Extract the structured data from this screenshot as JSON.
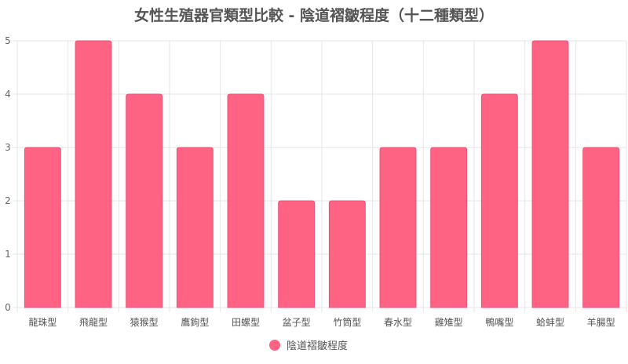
{
  "chart_data": {
    "type": "bar",
    "title": "女性生殖器官類型比較 - 陰道褶皺程度（十二種類型）",
    "categories": [
      "龍珠型",
      "飛龍型",
      "猿猴型",
      "鷹鉤型",
      "田螺型",
      "盆子型",
      "竹筒型",
      "春水型",
      "雞雉型",
      "鴨嘴型",
      "蛤蚌型",
      "羊腸型"
    ],
    "series": [
      {
        "name": "陰道褶皺程度",
        "values": [
          3,
          5,
          4,
          3,
          4,
          2,
          2,
          3,
          3,
          4,
          5,
          3
        ]
      }
    ],
    "yticks": [
      "0",
      "1",
      "2",
      "3",
      "4",
      "5"
    ],
    "ylim": [
      0,
      5
    ],
    "xlabel": "",
    "ylabel": "",
    "grid": true,
    "legend_position": "bottom",
    "colors": {
      "bar": "#ff6384",
      "grid": "#e6e6e6"
    }
  }
}
